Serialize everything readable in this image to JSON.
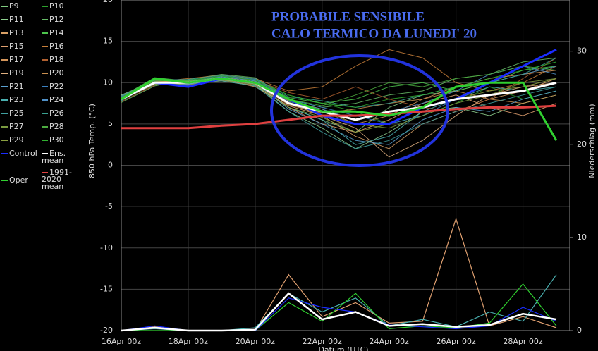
{
  "chart_data": {
    "type": "line",
    "annotation": [
      "PROBABILE SENSIBILE",
      "CALO TERMICO DA LUNEDI' 20"
    ],
    "ylabel": "850 hPa Temp. (°C)",
    "y2label": "Niederschlag (mm)",
    "xlabel": "Datum (UTC)",
    "x": [
      0,
      1,
      2,
      3,
      4,
      5,
      6,
      7,
      8,
      9,
      10,
      11,
      12,
      13
    ],
    "xlim": [
      0,
      13.4
    ],
    "xticks": [
      {
        "value": 0,
        "label": "16Apr 00z"
      },
      {
        "value": 2,
        "label": "18Apr 00z"
      },
      {
        "value": 4,
        "label": "20Apr 00z"
      },
      {
        "value": 6,
        "label": "22Apr 00z"
      },
      {
        "value": 8,
        "label": "24Apr 00z"
      },
      {
        "value": 10,
        "label": "26Apr 00z"
      },
      {
        "value": 12,
        "label": "28Apr 00z"
      }
    ],
    "ylim": [
      -20,
      20
    ],
    "yticks": [
      -20,
      -15,
      -10,
      -5,
      0,
      5,
      10,
      15,
      20
    ],
    "y2lim": [
      0,
      35.5
    ],
    "y2ticks": [
      0,
      10,
      20,
      30
    ],
    "grid": true,
    "series": [
      {
        "name": "P9",
        "color": "#7fc97f",
        "values": [
          8.2,
          9.8,
          10.3,
          10.2,
          9.6,
          7,
          5.5,
          4,
          7,
          8.5,
          9,
          10,
          11,
          12
        ]
      },
      {
        "name": "P10",
        "color": "#2ca02c",
        "values": [
          7.8,
          10.4,
          9.6,
          10.8,
          10.4,
          8.5,
          7.5,
          6.5,
          5,
          6,
          7.5,
          9.5,
          8,
          9
        ]
      },
      {
        "name": "P11",
        "color": "#8fd18f",
        "values": [
          8.5,
          10.2,
          10,
          10.6,
          9.8,
          6.5,
          4.5,
          2,
          4,
          6.5,
          7,
          6,
          7.5,
          8.5
        ]
      },
      {
        "name": "P12",
        "color": "#66bb66",
        "values": [
          7.6,
          9.6,
          10.4,
          11,
          10.6,
          8,
          7,
          7.5,
          8.5,
          9,
          10.5,
          11,
          12.5,
          13
        ]
      },
      {
        "name": "P13",
        "color": "#d9a066",
        "values": [
          8,
          10,
          9.8,
          10.4,
          9.5,
          7.2,
          6,
          3.5,
          2,
          5,
          6.5,
          8,
          9,
          10.5
        ]
      },
      {
        "name": "P14",
        "color": "#4cc44c",
        "values": [
          8.3,
          10.6,
          10.2,
          10.7,
          10.2,
          8.2,
          7.5,
          8,
          9.5,
          10,
          9,
          10,
          11.5,
          12
        ]
      },
      {
        "name": "P15",
        "color": "#e0a070",
        "values": [
          7.9,
          9.9,
          9.7,
          10.3,
          10,
          7,
          5,
          4,
          5.5,
          7.5,
          8.5,
          7,
          6,
          7.5
        ]
      },
      {
        "name": "P16",
        "color": "#c87f3a",
        "values": [
          8.1,
          10.1,
          10.5,
          10.9,
          10.5,
          9,
          9.5,
          12,
          14,
          13,
          10,
          9,
          10,
          12
        ]
      },
      {
        "name": "P17",
        "color": "#d4955a",
        "values": [
          8.4,
          10.3,
          9.9,
          10.2,
          9.7,
          7.8,
          6.8,
          5,
          6,
          8,
          9.5,
          10.5,
          11,
          11.5
        ]
      },
      {
        "name": "P18",
        "color": "#b06030",
        "values": [
          7.7,
          9.7,
          10.1,
          10.6,
          10.3,
          8.8,
          8,
          9.5,
          8,
          7,
          6.5,
          8,
          10.5,
          13
        ]
      },
      {
        "name": "P19",
        "color": "#e0b080",
        "values": [
          8,
          10,
          10.2,
          10.5,
          10.1,
          7.5,
          6,
          4.5,
          1,
          3,
          6,
          8.5,
          9.5,
          10
        ]
      },
      {
        "name": "P20",
        "color": "#c98f50",
        "values": [
          8.2,
          10.2,
          10,
          10.4,
          9.9,
          7.3,
          6.3,
          6.8,
          7.5,
          8,
          9,
          8,
          7.5,
          8.5
        ]
      },
      {
        "name": "P21",
        "color": "#5aa0d0",
        "values": [
          7.9,
          9.8,
          9.8,
          10.5,
          10,
          6.8,
          5,
          3,
          2.5,
          5.5,
          7,
          6.5,
          8,
          9
        ]
      },
      {
        "name": "P22",
        "color": "#3a80c0",
        "values": [
          8.3,
          10.4,
          10.3,
          10.8,
          10.4,
          8,
          7,
          6,
          5,
          6,
          8,
          10,
          11,
          12
        ]
      },
      {
        "name": "P23",
        "color": "#4ab0b0",
        "values": [
          8,
          10.1,
          9.9,
          10.3,
          9.8,
          7,
          5.5,
          2.5,
          3.5,
          6.5,
          8,
          9.5,
          9,
          9.5
        ]
      },
      {
        "name": "P24",
        "color": "#5090c8",
        "values": [
          8.1,
          9.9,
          10.1,
          10.7,
          10.2,
          7.7,
          6.8,
          5.5,
          6.5,
          7.5,
          9,
          11,
          12,
          11
        ]
      },
      {
        "name": "P25",
        "color": "#40a0a0",
        "values": [
          7.8,
          10,
          10,
          10.2,
          9.6,
          6.5,
          4,
          2,
          3,
          5,
          6.5,
          7.5,
          8.5,
          9.5
        ]
      },
      {
        "name": "P26",
        "color": "#3aa090",
        "values": [
          8.4,
          10.3,
          10.4,
          10.9,
          10.5,
          8.3,
          7.8,
          7,
          7.5,
          8.5,
          9.5,
          10,
          11,
          13
        ]
      },
      {
        "name": "P27",
        "color": "#7a9a40",
        "values": [
          8,
          10,
          9.7,
          10.4,
          10,
          7.6,
          6.5,
          5,
          4.5,
          6,
          7.5,
          8.5,
          10,
          10.5
        ]
      },
      {
        "name": "P28",
        "color": "#4caa40",
        "values": [
          8.2,
          10.5,
          10.2,
          10.6,
          10.1,
          8,
          7.2,
          8.5,
          10,
          9.5,
          10.5,
          11,
          12,
          11.5
        ]
      },
      {
        "name": "P29",
        "color": "#8aa040",
        "values": [
          7.9,
          9.8,
          10,
          10.3,
          9.8,
          7,
          5.8,
          4,
          5,
          7,
          8,
          9,
          9.5,
          10.5
        ]
      },
      {
        "name": "P30",
        "color": "#30b030",
        "values": [
          8.1,
          10.2,
          10.3,
          10.8,
          10.3,
          8.5,
          7.5,
          7,
          8,
          8.5,
          9.5,
          10.5,
          11.5,
          12.5
        ]
      },
      {
        "name": "Control",
        "color": "#1a2cff",
        "values": [
          8,
          10,
          9.5,
          10.5,
          10,
          8,
          6,
          5,
          5,
          7,
          8,
          10,
          12,
          14
        ]
      },
      {
        "name": "Ens. mean",
        "color": "#ffffff",
        "values": [
          8,
          10,
          10,
          10.5,
          10,
          7.5,
          6.5,
          5.5,
          6.5,
          7,
          8,
          8.5,
          9,
          10
        ]
      },
      {
        "name": "1991-2020 mean",
        "color": "#e04040",
        "values": [
          4.5,
          4.5,
          4.5,
          4.8,
          5,
          5.5,
          6,
          6,
          6.2,
          6.5,
          6.8,
          7,
          7,
          7.2
        ]
      },
      {
        "name": "Oper",
        "color": "#30d030",
        "values": [
          8,
          10.5,
          10,
          10.5,
          10,
          8,
          6.5,
          6.5,
          6,
          7,
          9.5,
          10,
          10,
          3
        ]
      }
    ],
    "precip_series": [
      {
        "color": "#e0a070",
        "axis": "y2",
        "values": [
          0,
          0.4,
          0,
          0,
          0,
          6,
          1.5,
          3,
          0.8,
          1,
          12,
          0.5,
          1.5,
          0.3
        ]
      },
      {
        "color": "#4ab0b0",
        "axis": "y2",
        "values": [
          0,
          0.2,
          0,
          0,
          0.3,
          4,
          2,
          3.5,
          0.5,
          1.2,
          0.4,
          2,
          1,
          6
        ]
      },
      {
        "color": "#30d030",
        "axis": "y2",
        "values": [
          0,
          0,
          0,
          0,
          0,
          3,
          1,
          4,
          0.2,
          0.5,
          0.3,
          0.8,
          5,
          0.5
        ]
      },
      {
        "color": "#1a2cff",
        "axis": "y2",
        "values": [
          0,
          0.5,
          0,
          0,
          0,
          3.5,
          2.5,
          2,
          0.6,
          0.4,
          0.2,
          0.5,
          2.5,
          1
        ]
      },
      {
        "color": "#ffffff",
        "axis": "y2",
        "values": [
          0,
          0.3,
          0,
          0,
          0.1,
          4,
          1.2,
          2,
          0.5,
          0.7,
          0.4,
          0.6,
          1.8,
          1.2
        ]
      }
    ]
  }
}
